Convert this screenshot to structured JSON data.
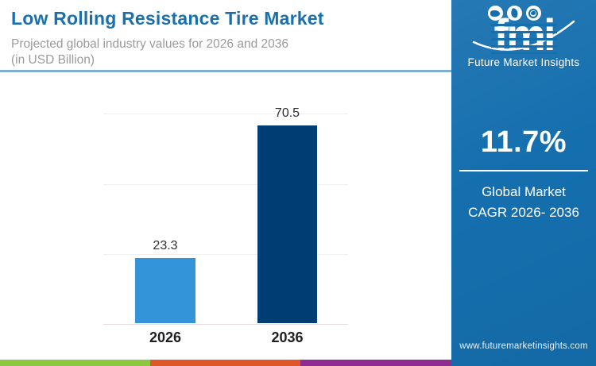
{
  "header": {
    "title": "Low Rolling Resistance Tire Market",
    "subtitle_line1": "Projected global industry values for 2026 and 2036",
    "subtitle_line2": "(in USD Billion)",
    "title_color": "#1a6fad"
  },
  "chart_data": {
    "type": "bar",
    "title": "Low Rolling Resistance Tire Market",
    "subtitle": "Projected global industry values for 2026 and 2036 (in USD Billion)",
    "categories": [
      "2026",
      "2036"
    ],
    "values": [
      23.3,
      70.5
    ],
    "value_labels": [
      "23.3",
      "70.5"
    ],
    "colors": [
      "#3494d9",
      "#003d73"
    ],
    "ylim": [
      0,
      75
    ],
    "gridline_step": 25,
    "grid": true,
    "legend": false,
    "xlabel": "",
    "ylabel": ""
  },
  "sidebar": {
    "background": "#156fae",
    "logo": {
      "wordmark": "fmi",
      "caption": "Future Market Insights",
      "icons": [
        "us-map-icon",
        "compass-icon",
        "globe-icon"
      ]
    },
    "stat": {
      "value": "11.7%",
      "caption_line1": "Global Market",
      "caption_line2": "CAGR 2026- 2036"
    },
    "website": "www.futuremarketinsights.com"
  },
  "footer_strip": {
    "colors": [
      "#8dc63f",
      "#e0562b",
      "#8e2c90"
    ]
  }
}
